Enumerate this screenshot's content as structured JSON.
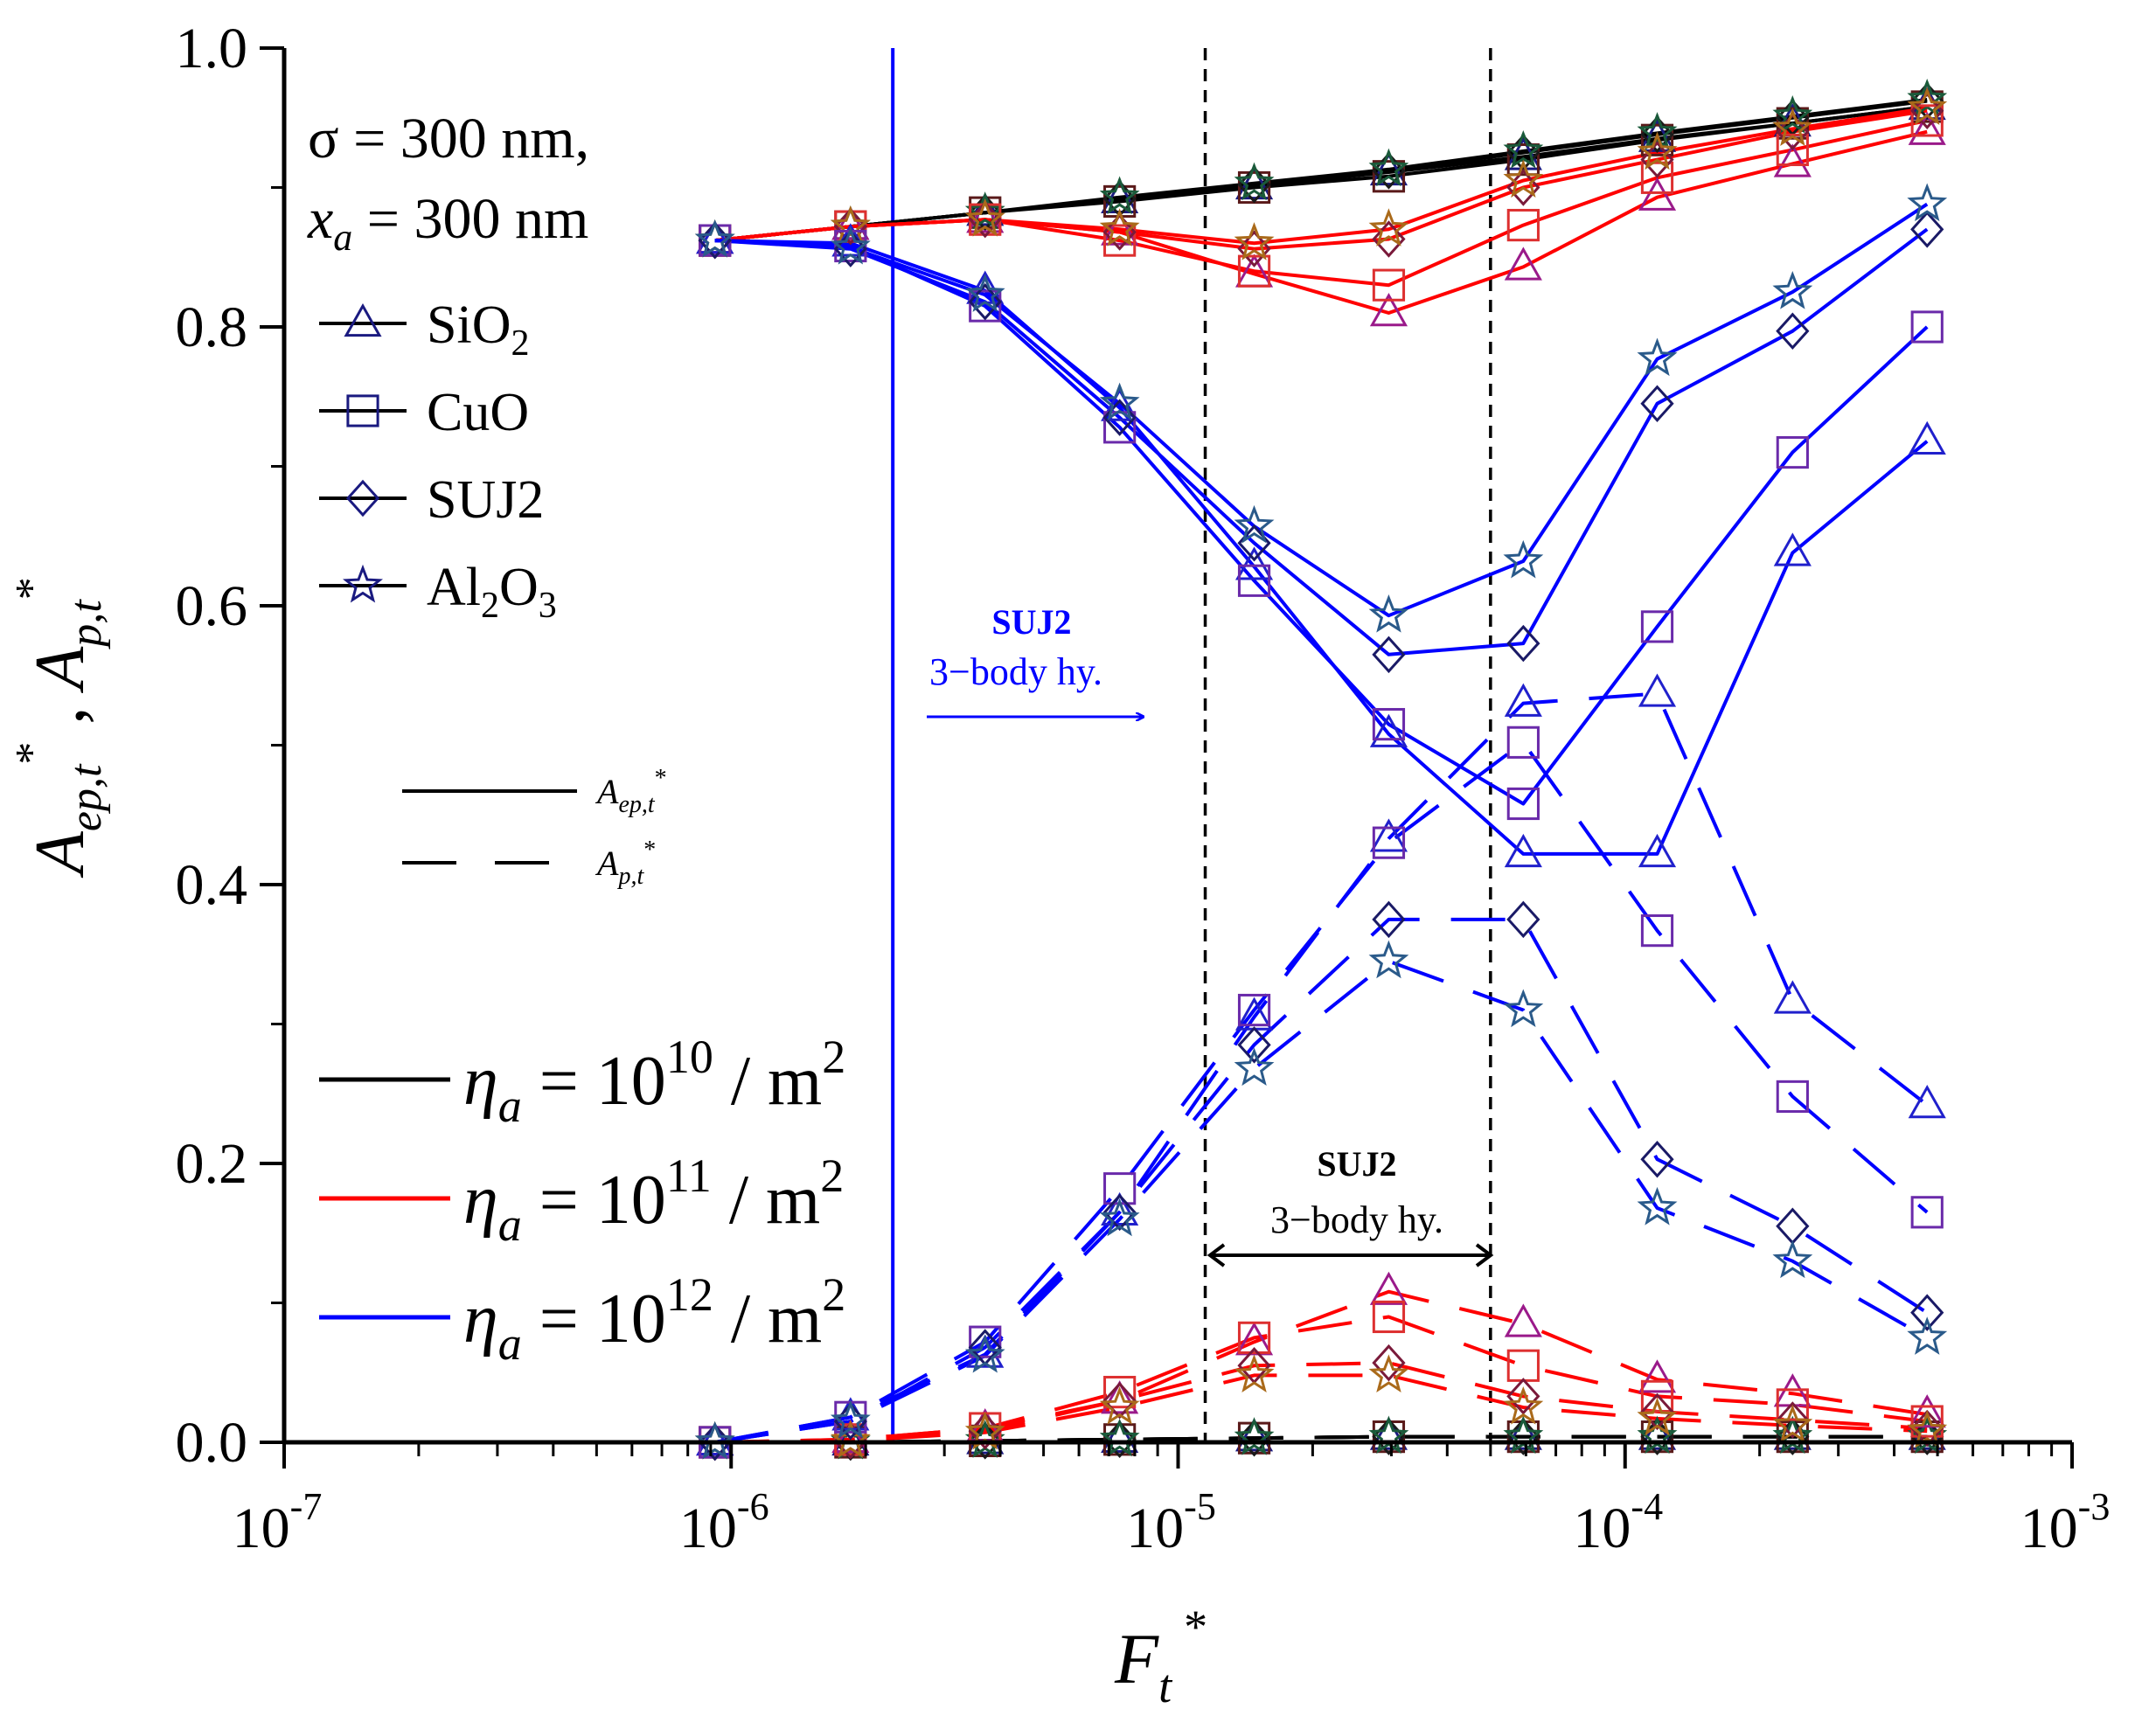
{
  "chart_data": {
    "type": "line",
    "xscale": "log",
    "x": [
      9.2e-07,
      1.85e-06,
      3.7e-06,
      7.4e-06,
      1.48e-05,
      2.96e-05,
      5.92e-05,
      0.000118,
      0.000237,
      0.000474
    ],
    "xlim_exp": [
      -7,
      -3
    ],
    "ylim": [
      0,
      1
    ],
    "xlabel": {
      "main": "F",
      "sub": "t",
      "sup": "*"
    },
    "ylabel": {
      "a": "A",
      "a_sub": "ep,t",
      "a_sup": "*",
      "sep": " , ",
      "b": "A",
      "b_sub": "p,t",
      "b_sup": "*"
    },
    "xtick_labels": [
      {
        "base": "10",
        "exp": "-7"
      },
      {
        "base": "10",
        "exp": "-6"
      },
      {
        "base": "10",
        "exp": "-5"
      },
      {
        "base": "10",
        "exp": "-4"
      },
      {
        "base": "10",
        "exp": "-3"
      }
    ],
    "ytick_labels": [
      "0.0",
      "0.2",
      "0.4",
      "0.6",
      "0.8",
      "1.0"
    ],
    "annotation_params": {
      "sigma": "σ = 300 nm,",
      "xa_main": "x",
      "xa_sub": "a",
      "xa_rest": " = 300 nm"
    },
    "markers": [
      {
        "id": "SiO2",
        "label_main": "SiO",
        "label_sub": "2",
        "label_tail": "",
        "label_sub2": "",
        "shape": "triangle"
      },
      {
        "id": "CuO",
        "label_main": "CuO",
        "label_sub": "",
        "label_tail": "",
        "label_sub2": "",
        "shape": "square"
      },
      {
        "id": "SUJ2",
        "label_main": "SUJ2",
        "label_sub": "",
        "label_tail": "",
        "label_sub2": "",
        "shape": "diamond"
      },
      {
        "id": "Al2O3",
        "label_main": "Al",
        "label_sub": "2",
        "label_tail": "O",
        "label_sub2": "3",
        "shape": "star"
      }
    ],
    "line_styles": [
      {
        "style": "solid",
        "label_main": "A",
        "label_sub": "ep,t",
        "label_sup": "*"
      },
      {
        "style": "dashed",
        "label_main": "A",
        "label_sub": "p,t",
        "label_sup": "*"
      }
    ],
    "densities": [
      {
        "key": "1e10",
        "color": "#000000",
        "eta": "η",
        "eta_sub": "a",
        "eq": " = 10",
        "exp": "10",
        "unit": " / m",
        "unit_sup": "2"
      },
      {
        "key": "1e11",
        "color": "#ff0000",
        "eta": "η",
        "eta_sub": "a",
        "eq": " = 10",
        "exp": "11",
        "unit": " / m",
        "unit_sup": "2"
      },
      {
        "key": "1e12",
        "color": "#0000ff",
        "eta": "η",
        "eta_sub": "a",
        "eq": " = 10",
        "exp": "12",
        "unit": " / m",
        "unit_sup": "2"
      }
    ],
    "marker_edge_colors": {
      "SiO2": {
        "1e10": "#1a1a80",
        "1e11": "#9a1a8a",
        "1e12": "#2020cc"
      },
      "CuO": {
        "1e10": "#5a1a1a",
        "1e11": "#dd3030",
        "1e12": "#6a2aaa"
      },
      "SUJ2": {
        "1e10": "#1a1a1a",
        "1e11": "#7a1a3a",
        "1e12": "#1a1a66"
      },
      "Al2O3": {
        "1e10": "#1a5a3a",
        "1e11": "#aa6a1a",
        "1e12": "#2a5a8a"
      }
    },
    "series": [
      {
        "material": "SiO2",
        "density": "1e10",
        "kind": "Aep",
        "values": [
          0.862,
          0.872,
          0.882,
          0.891,
          0.901,
          0.911,
          0.922,
          0.935,
          0.946,
          0.958
        ]
      },
      {
        "material": "CuO",
        "density": "1e10",
        "kind": "Aep",
        "values": [
          0.862,
          0.872,
          0.882,
          0.89,
          0.9,
          0.908,
          0.92,
          0.934,
          0.946,
          0.958
        ]
      },
      {
        "material": "SUJ2",
        "density": "1e10",
        "kind": "Aep",
        "values": [
          0.862,
          0.872,
          0.882,
          0.892,
          0.902,
          0.912,
          0.925,
          0.938,
          0.95,
          0.962
        ]
      },
      {
        "material": "Al2O3",
        "density": "1e10",
        "kind": "Aep",
        "values": [
          0.862,
          0.872,
          0.882,
          0.893,
          0.903,
          0.913,
          0.926,
          0.939,
          0.951,
          0.963
        ]
      },
      {
        "material": "SiO2",
        "density": "1e10",
        "kind": "Ap",
        "values": [
          0.0,
          0.0,
          0.001,
          0.002,
          0.003,
          0.004,
          0.004,
          0.004,
          0.004,
          0.004
        ]
      },
      {
        "material": "CuO",
        "density": "1e10",
        "kind": "Ap",
        "values": [
          0.0,
          0.0,
          0.001,
          0.002,
          0.003,
          0.004,
          0.004,
          0.004,
          0.004,
          0.004
        ]
      },
      {
        "material": "SUJ2",
        "density": "1e10",
        "kind": "Ap",
        "values": [
          0.0,
          0.0,
          0.001,
          0.002,
          0.003,
          0.004,
          0.004,
          0.004,
          0.004,
          0.004
        ]
      },
      {
        "material": "Al2O3",
        "density": "1e10",
        "kind": "Ap",
        "values": [
          0.0,
          0.0,
          0.001,
          0.002,
          0.003,
          0.004,
          0.004,
          0.004,
          0.004,
          0.004
        ]
      },
      {
        "material": "SiO2",
        "density": "1e11",
        "kind": "Aep",
        "values": [
          0.862,
          0.872,
          0.877,
          0.868,
          0.838,
          0.81,
          0.843,
          0.893,
          0.917,
          0.94
        ]
      },
      {
        "material": "CuO",
        "density": "1e11",
        "kind": "Aep",
        "values": [
          0.862,
          0.872,
          0.877,
          0.862,
          0.84,
          0.83,
          0.873,
          0.907,
          0.927,
          0.948
        ]
      },
      {
        "material": "SUJ2",
        "density": "1e11",
        "kind": "Aep",
        "values": [
          0.862,
          0.872,
          0.877,
          0.868,
          0.856,
          0.863,
          0.9,
          0.92,
          0.94,
          0.955
        ]
      },
      {
        "material": "Al2O3",
        "density": "1e11",
        "kind": "Aep",
        "values": [
          0.862,
          0.872,
          0.877,
          0.87,
          0.86,
          0.87,
          0.905,
          0.925,
          0.942,
          0.957
        ]
      },
      {
        "material": "SiO2",
        "density": "1e11",
        "kind": "Ap",
        "values": [
          0.0,
          0.002,
          0.01,
          0.03,
          0.072,
          0.108,
          0.085,
          0.045,
          0.035,
          0.02
        ]
      },
      {
        "material": "CuO",
        "density": "1e11",
        "kind": "Ap",
        "values": [
          0.0,
          0.002,
          0.01,
          0.036,
          0.075,
          0.09,
          0.055,
          0.033,
          0.027,
          0.015
        ]
      },
      {
        "material": "SUJ2",
        "density": "1e11",
        "kind": "Ap",
        "values": [
          0.0,
          0.001,
          0.008,
          0.03,
          0.055,
          0.057,
          0.033,
          0.022,
          0.016,
          0.01
        ]
      },
      {
        "material": "Al2O3",
        "density": "1e11",
        "kind": "Ap",
        "values": [
          0.0,
          0.001,
          0.007,
          0.025,
          0.048,
          0.048,
          0.025,
          0.017,
          0.012,
          0.008
        ]
      },
      {
        "material": "SiO2",
        "density": "1e12",
        "kind": "Aep",
        "values": [
          0.862,
          0.86,
          0.826,
          0.742,
          0.628,
          0.508,
          0.422,
          0.422,
          0.638,
          0.718
        ]
      },
      {
        "material": "CuO",
        "density": "1e12",
        "kind": "Aep",
        "values": [
          0.862,
          0.858,
          0.815,
          0.728,
          0.618,
          0.515,
          0.458,
          0.585,
          0.71,
          0.8
        ]
      },
      {
        "material": "SUJ2",
        "density": "1e12",
        "kind": "Aep",
        "values": [
          0.862,
          0.856,
          0.818,
          0.735,
          0.645,
          0.565,
          0.573,
          0.745,
          0.797,
          0.87
        ]
      },
      {
        "material": "Al2O3",
        "density": "1e12",
        "kind": "Aep",
        "values": [
          0.862,
          0.857,
          0.823,
          0.745,
          0.657,
          0.593,
          0.632,
          0.777,
          0.825,
          0.888
        ]
      },
      {
        "material": "SiO2",
        "density": "1e12",
        "kind": "Ap",
        "values": [
          0.0,
          0.018,
          0.063,
          0.165,
          0.305,
          0.433,
          0.53,
          0.537,
          0.317,
          0.242
        ]
      },
      {
        "material": "CuO",
        "density": "1e12",
        "kind": "Ap",
        "values": [
          0.0,
          0.018,
          0.072,
          0.182,
          0.31,
          0.43,
          0.502,
          0.367,
          0.248,
          0.165
        ]
      },
      {
        "material": "SUJ2",
        "density": "1e12",
        "kind": "Ap",
        "values": [
          0.0,
          0.015,
          0.068,
          0.165,
          0.285,
          0.375,
          0.375,
          0.203,
          0.155,
          0.093
        ]
      },
      {
        "material": "Al2O3",
        "density": "1e12",
        "kind": "Ap",
        "values": [
          0.0,
          0.015,
          0.062,
          0.16,
          0.268,
          0.345,
          0.31,
          0.168,
          0.13,
          0.075
        ]
      }
    ],
    "vertical_lines": [
      {
        "x": 2.3e-06,
        "style": "solid",
        "color": "#0000ff"
      },
      {
        "x": 1.15e-05,
        "style": "dashed",
        "color": "#000000"
      },
      {
        "x": 5e-05,
        "style": "dashed",
        "color": "#000000"
      }
    ],
    "annotations": [
      {
        "id": "blue-suj2",
        "title": "SUJ2",
        "text": "3−body hy.",
        "color": "#0000ff"
      },
      {
        "id": "black-suj2",
        "title": "SUJ2",
        "text": "3−body hy.",
        "color": "#000000"
      }
    ]
  }
}
